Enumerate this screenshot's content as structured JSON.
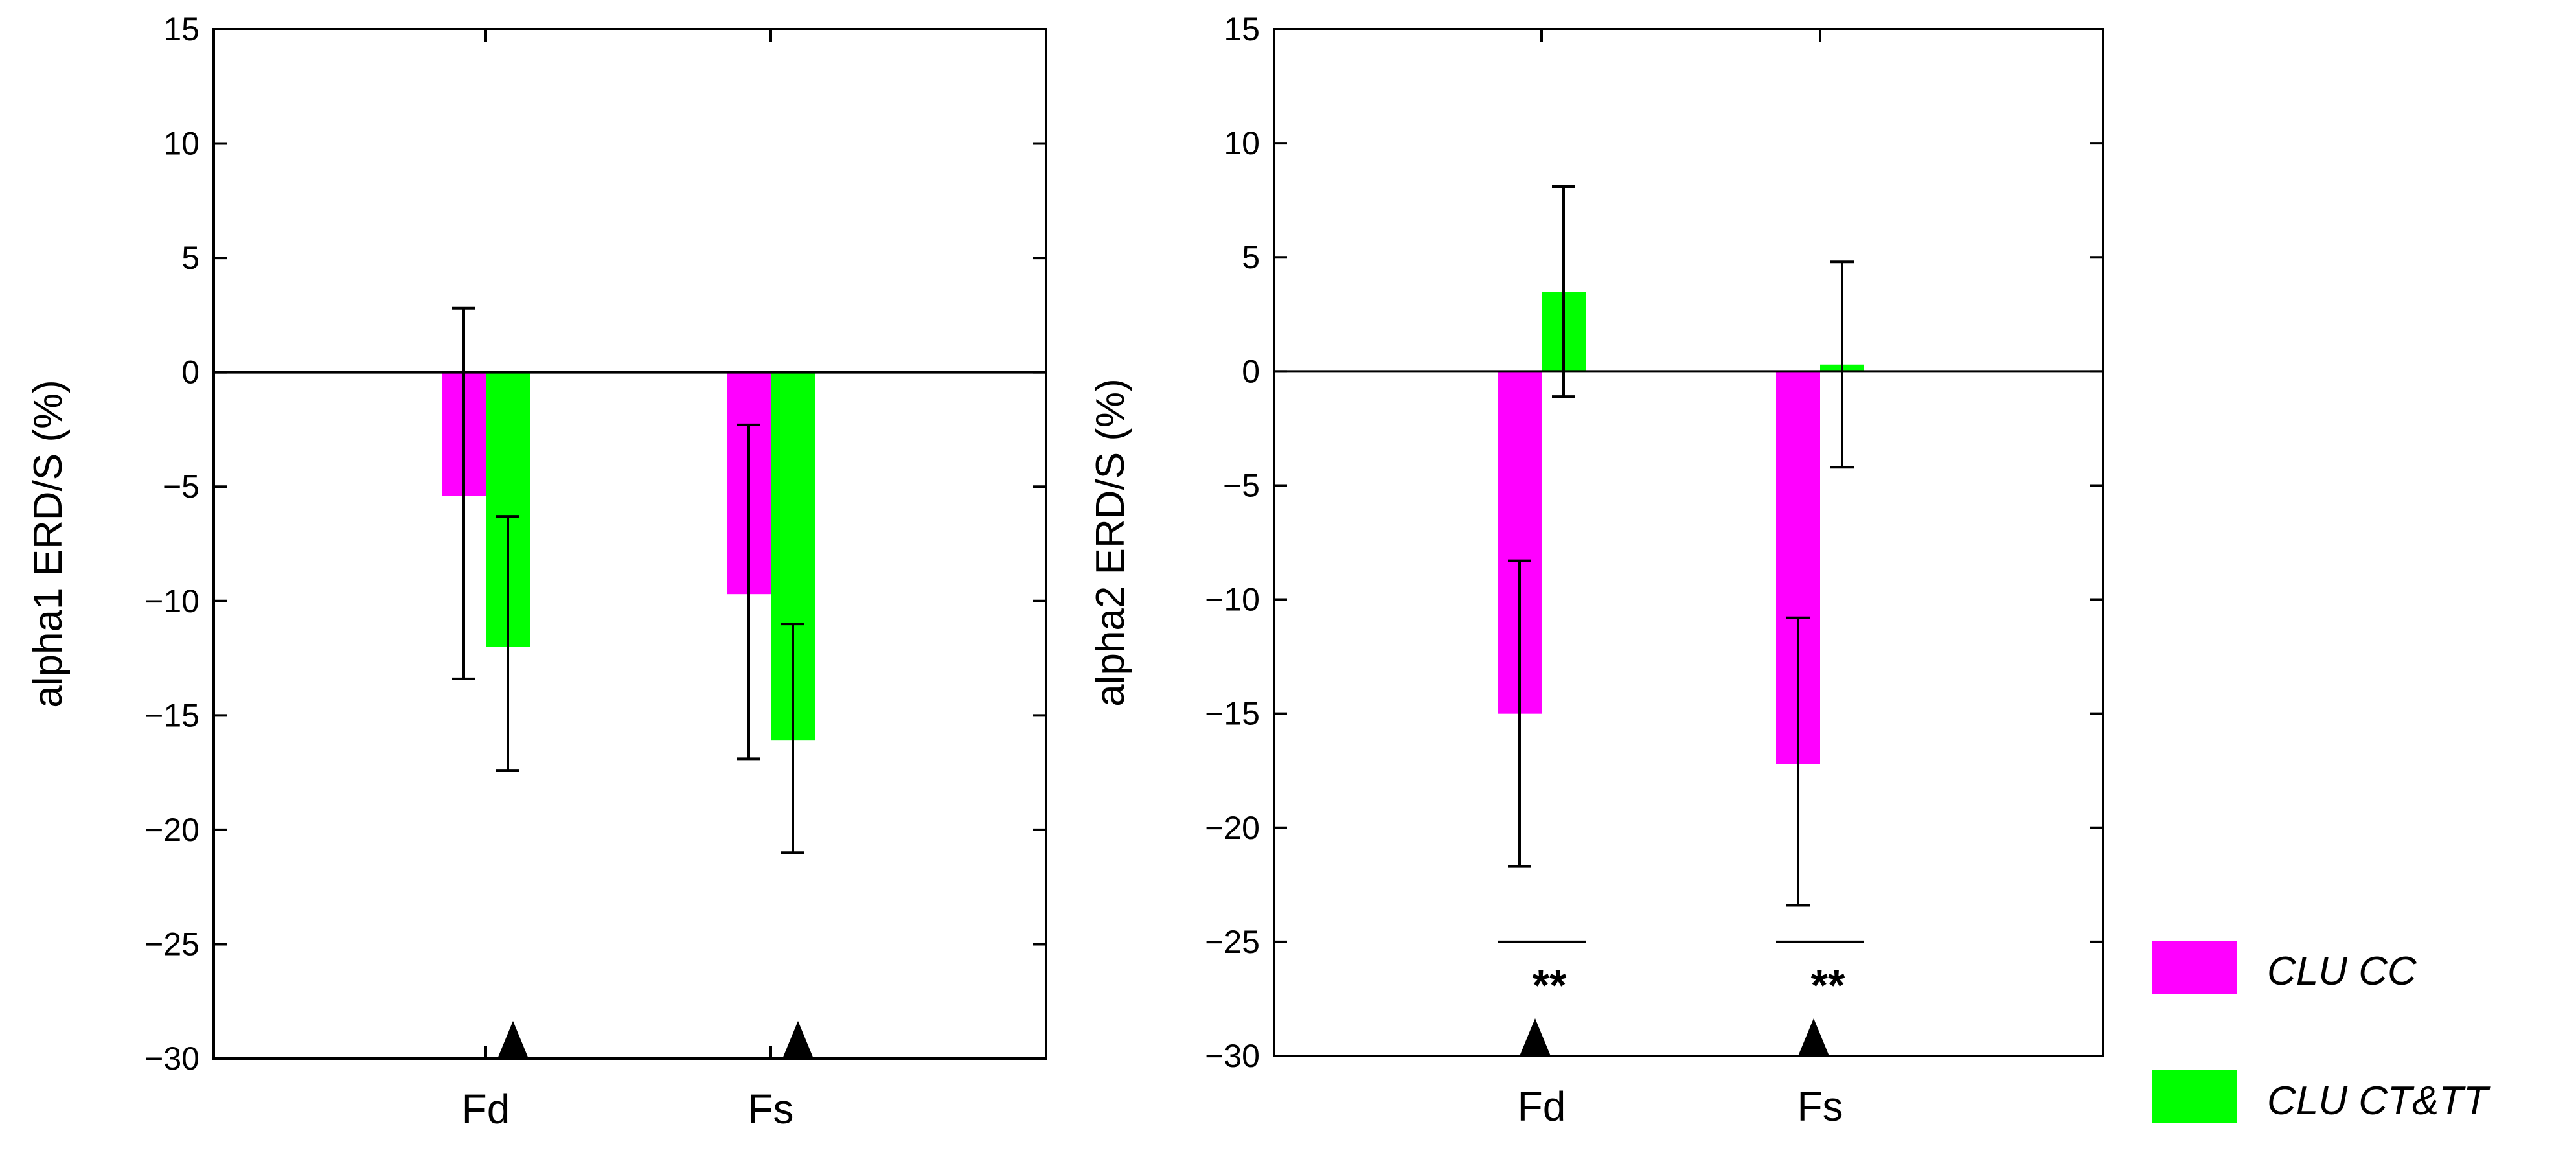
{
  "colors": {
    "clu_cc": "#ff00ff",
    "clu_ct_tt": "#00ff00",
    "axis": "#000000",
    "marker": "#000000"
  },
  "legend": {
    "items": [
      {
        "label": "CLU CC",
        "color": "#ff00ff"
      },
      {
        "label": "CLU CT&TT",
        "color": "#00ff00"
      }
    ]
  },
  "chart_data": [
    {
      "type": "bar",
      "title": "",
      "xlabel": "",
      "ylabel": "alpha1 ERD/S (%)",
      "ylim": [
        -30,
        15
      ],
      "yticks": [
        "15",
        "10",
        "5",
        "0",
        "−5",
        "−10",
        "−15",
        "−20",
        "−25",
        "−30"
      ],
      "ytick_values": [
        15,
        10,
        5,
        0,
        -5,
        -10,
        -15,
        -20,
        -25,
        -30
      ],
      "categories": [
        "Fd",
        "Fs"
      ],
      "series": [
        {
          "name": "CLU CC",
          "values": [
            -5.4,
            -9.7
          ],
          "err_low": [
            -13.4,
            -16.9
          ],
          "err_high": [
            2.8,
            -2.3
          ]
        },
        {
          "name": "CLU CT&TT",
          "values": [
            -12.0,
            -16.1
          ],
          "err_low": [
            -17.4,
            -21.0
          ],
          "err_high": [
            -6.3,
            -11.0
          ]
        }
      ],
      "significance": [
        "",
        ""
      ],
      "markers": [
        "▲",
        "▲"
      ]
    },
    {
      "type": "bar",
      "title": "",
      "xlabel": "",
      "ylabel": "alpha2 ERD/S (%)",
      "ylim": [
        -30,
        15
      ],
      "yticks": [
        "15",
        "10",
        "5",
        "0",
        "−5",
        "−10",
        "−15",
        "−20",
        "−25",
        "−30"
      ],
      "ytick_values": [
        15,
        10,
        5,
        0,
        -5,
        -10,
        -15,
        -20,
        -25,
        -30
      ],
      "categories": [
        "Fd",
        "Fs"
      ],
      "series": [
        {
          "name": "CLU CC",
          "values": [
            -15.0,
            -17.2
          ],
          "err_low": [
            -21.7,
            -23.4
          ],
          "err_high": [
            -8.3,
            -10.8
          ]
        },
        {
          "name": "CLU CT&TT",
          "values": [
            3.5,
            0.3
          ],
          "err_low": [
            -1.1,
            -4.2
          ],
          "err_high": [
            8.1,
            4.8
          ]
        }
      ],
      "significance": [
        "**",
        "**"
      ],
      "markers": [
        "▲",
        "▲"
      ]
    }
  ]
}
